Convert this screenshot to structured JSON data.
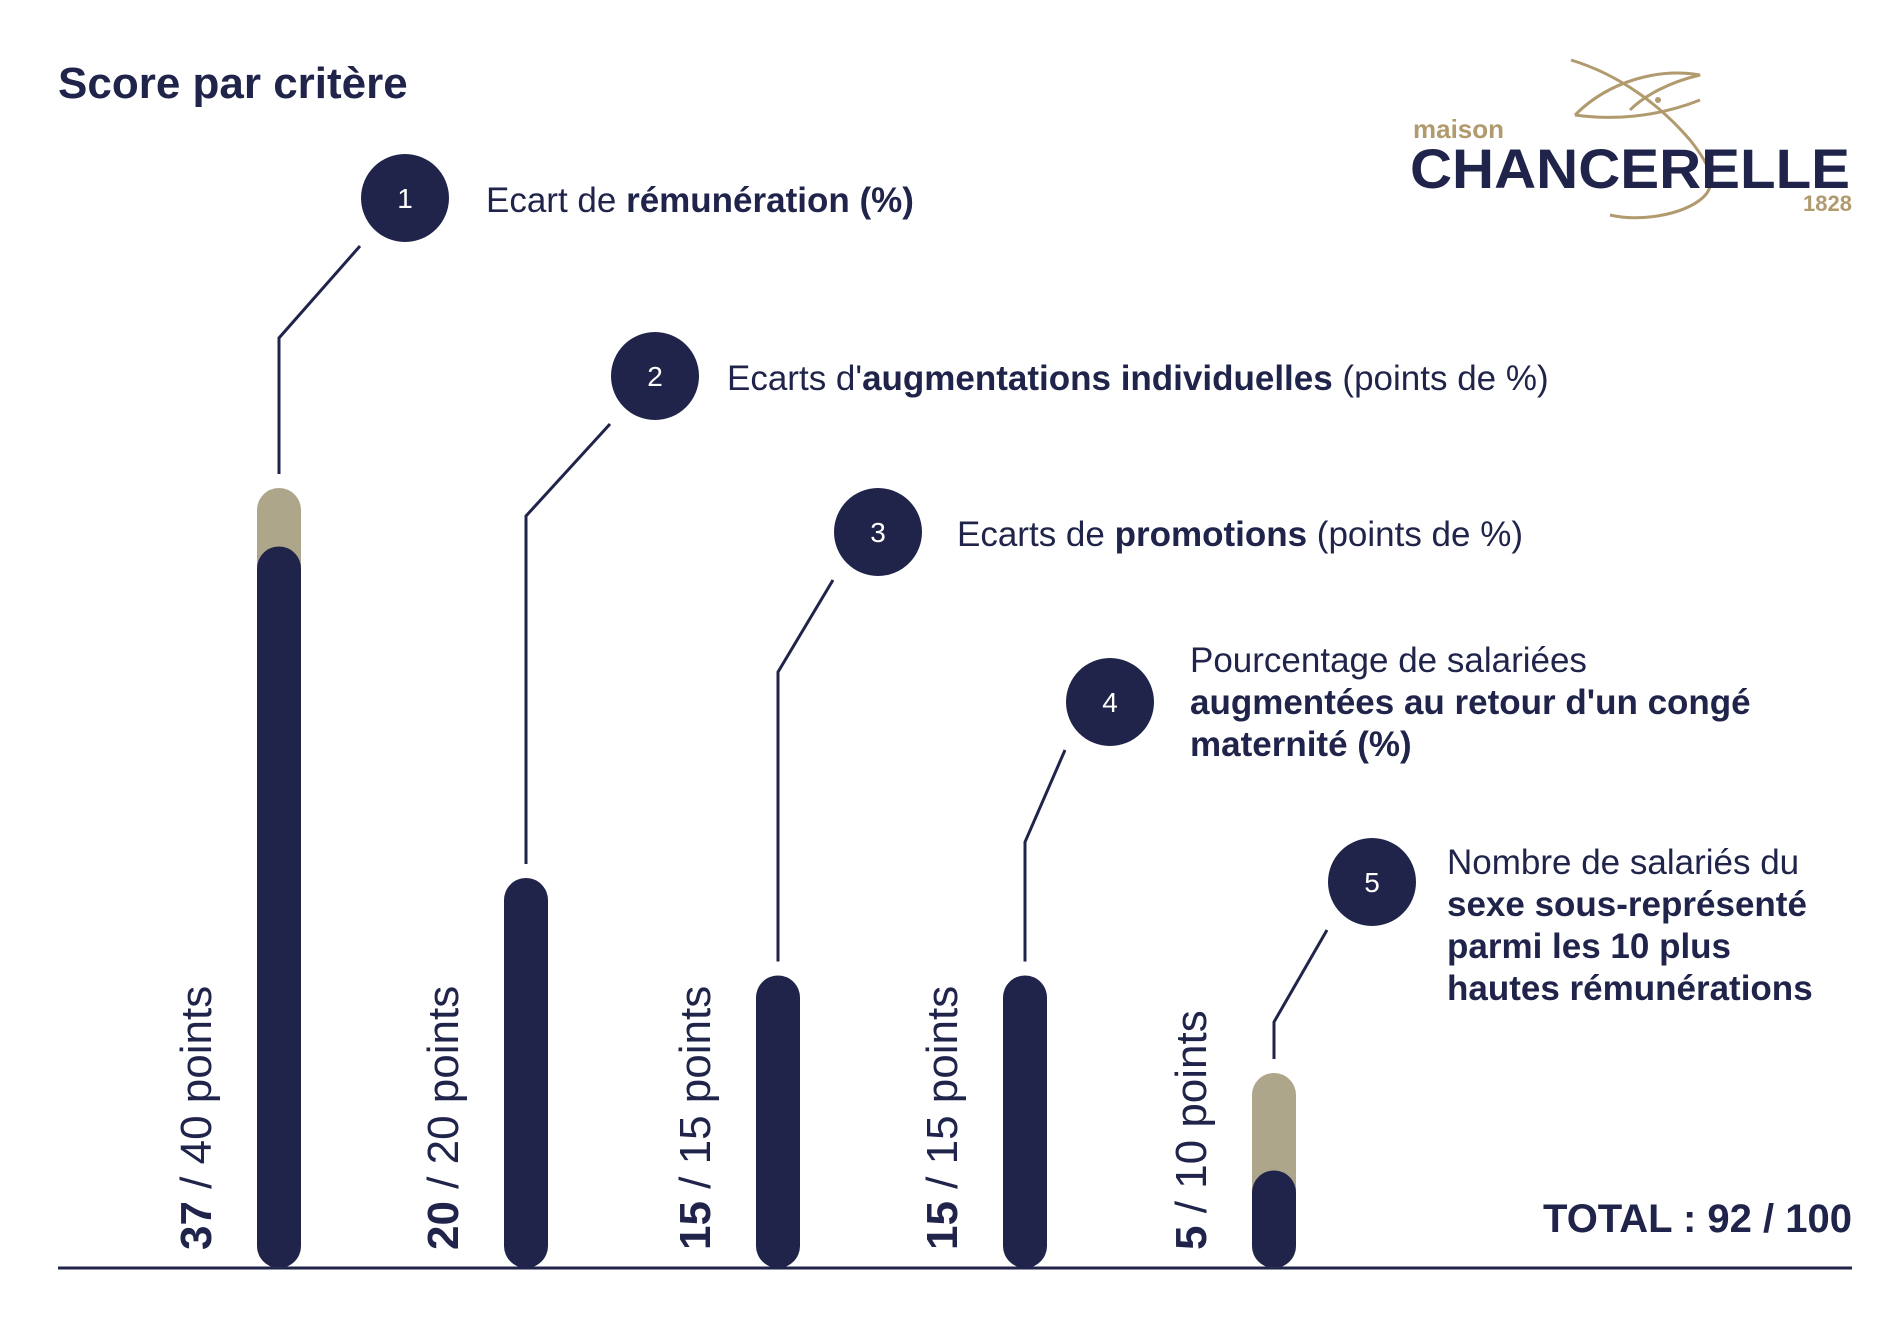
{
  "header": {
    "title": "Score par critère"
  },
  "logo": {
    "small": "maison",
    "name": "CHANCERELLE",
    "year": "1828",
    "colors": {
      "navy": "#20244a",
      "gold": "#b09a6e"
    }
  },
  "colors": {
    "navy": "#20244a",
    "beige": "#aea68a",
    "text": "#20244a"
  },
  "chart_data": {
    "type": "bar",
    "title": "Score par critère",
    "categories": [
      "1",
      "2",
      "3",
      "4",
      "5"
    ],
    "series": [
      {
        "values": [
          37,
          20,
          15,
          15,
          5
        ]
      }
    ],
    "max_values": [
      40,
      20,
      15,
      15,
      10
    ],
    "value_labels": [
      {
        "value": "37",
        "rest": " / 40 points"
      },
      {
        "value": "20",
        "rest": " / 20 points"
      },
      {
        "value": "15",
        "rest": " / 15 points"
      },
      {
        "value": "15",
        "rest": " / 15 points"
      },
      {
        "value": "5",
        "rest": " / 10 points"
      }
    ],
    "annotations": [
      {
        "number": "1",
        "lines": [
          [
            {
              "t": "Ecart de ",
              "b": false
            },
            {
              "t": "rémunération (%)",
              "b": true
            }
          ]
        ]
      },
      {
        "number": "2",
        "lines": [
          [
            {
              "t": "Ecarts d'",
              "b": false
            },
            {
              "t": "augmentations individuelles",
              "b": true
            },
            {
              "t": " (points de %)",
              "b": false
            }
          ]
        ]
      },
      {
        "number": "3",
        "lines": [
          [
            {
              "t": "Ecarts de ",
              "b": false
            },
            {
              "t": "promotions",
              "b": true
            },
            {
              "t": " (points de %)",
              "b": false
            }
          ]
        ]
      },
      {
        "number": "4",
        "lines": [
          [
            {
              "t": "Pourcentage de salariées",
              "b": false
            }
          ],
          [
            {
              "t": "augmentées au retour d'un congé",
              "b": true
            }
          ],
          [
            {
              "t": "maternité (%)",
              "b": true
            }
          ]
        ]
      },
      {
        "number": "5",
        "lines": [
          [
            {
              "t": "Nombre de salariés du",
              "b": false
            }
          ],
          [
            {
              "t": "sexe sous-représenté",
              "b": true
            }
          ],
          [
            {
              "t": "parmi les 10 plus",
              "b": true
            }
          ],
          [
            {
              "t": "hautes rémunérations",
              "b": true
            }
          ]
        ]
      }
    ],
    "total": "TOTAL : 92 / 100"
  }
}
